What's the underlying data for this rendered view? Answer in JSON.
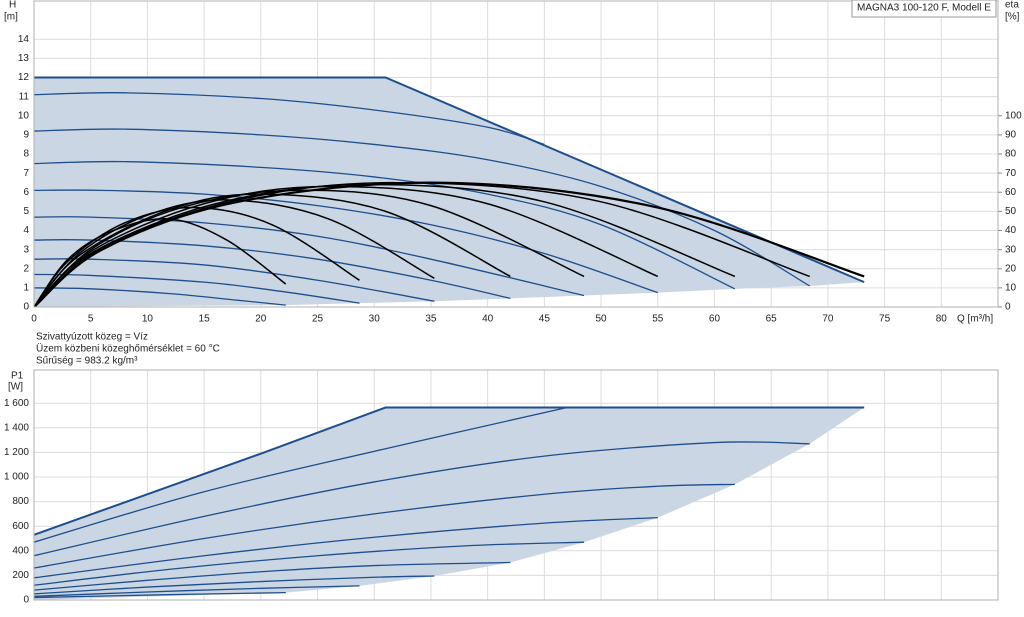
{
  "notes": [
    "Szivattyúzott közeg = Víz",
    "Üzem közbeni közeghőmérséklet = 60 °C",
    "Sűrűség = 983.2 kg/m³"
  ],
  "chart_data": [
    {
      "type": "line",
      "annotation": "MAGNA3 100-120 F, Modell E",
      "y_label": "H",
      "y_unit": "[m]",
      "y2_label": "eta",
      "y2_unit": "[%]",
      "x_label": "Q [m³/h]",
      "xlim": [
        0,
        85
      ],
      "xticks": [
        0,
        5,
        10,
        15,
        20,
        25,
        30,
        35,
        40,
        45,
        50,
        55,
        60,
        65,
        70,
        75,
        80
      ],
      "xtick_labels": true,
      "ylim": [
        0,
        16
      ],
      "yticks": [
        0,
        1,
        2,
        3,
        4,
        5,
        6,
        7,
        8,
        9,
        10,
        11,
        12,
        13,
        14
      ],
      "y2lim": [
        0,
        160
      ],
      "y2ticks": [
        0,
        10,
        20,
        30,
        40,
        50,
        60,
        70,
        80,
        90,
        100
      ],
      "grid": true,
      "envelope": {
        "color": "#cad6e3",
        "line_color": "#1f4e8c",
        "upper": {
          "x": [
            0,
            31,
            73.2
          ],
          "values": [
            12,
            12,
            1.3
          ]
        },
        "lower": {
          "x": [
            0,
            22.2,
            28.7,
            35.3,
            42,
            48.5,
            55,
            61.8,
            68.4,
            73.2
          ],
          "values": [
            0,
            0.1,
            0.2,
            0.3,
            0.45,
            0.6,
            0.75,
            0.95,
            1.1,
            1.3
          ]
        }
      },
      "series": [
        {
          "color": "#1f4e8c",
          "x": [
            0,
            8,
            20,
            30,
            40,
            45
          ],
          "values": [
            11.1,
            11.2,
            10.9,
            10.3,
            9.4,
            8.5
          ]
        },
        {
          "color": "#1f4e8c",
          "x": [
            0,
            8,
            20,
            30,
            40,
            50,
            60,
            68.4
          ],
          "values": [
            9.2,
            9.3,
            9.0,
            8.5,
            7.7,
            6.3,
            4.0,
            1.1
          ]
        },
        {
          "color": "#1f4e8c",
          "x": [
            0,
            8,
            20,
            30,
            40,
            50,
            61.8
          ],
          "values": [
            7.5,
            7.6,
            7.3,
            6.8,
            5.9,
            4.3,
            0.95
          ]
        },
        {
          "color": "#1f4e8c",
          "x": [
            0,
            6,
            15,
            25,
            35,
            45,
            55
          ],
          "values": [
            6.1,
            6.1,
            5.9,
            5.3,
            4.3,
            2.8,
            0.75
          ]
        },
        {
          "color": "#1f4e8c",
          "x": [
            0,
            5,
            15,
            25,
            35,
            48.5
          ],
          "values": [
            4.7,
            4.7,
            4.4,
            3.7,
            2.5,
            0.6
          ]
        },
        {
          "color": "#1f4e8c",
          "x": [
            0,
            5,
            15,
            25,
            35,
            42
          ],
          "values": [
            3.5,
            3.5,
            3.2,
            2.5,
            1.4,
            0.45
          ]
        },
        {
          "color": "#1f4e8c",
          "x": [
            0,
            5,
            15,
            25,
            35.3
          ],
          "values": [
            2.5,
            2.5,
            2.2,
            1.4,
            0.3
          ]
        },
        {
          "color": "#1f4e8c",
          "x": [
            0,
            5,
            15,
            22,
            28.7
          ],
          "values": [
            1.7,
            1.65,
            1.3,
            0.8,
            0.2
          ]
        },
        {
          "color": "#1f4e8c",
          "x": [
            0,
            5,
            12,
            18,
            22.2
          ],
          "values": [
            1.0,
            0.95,
            0.7,
            0.35,
            0.1
          ]
        },
        {
          "color": "#000000",
          "axis": "y2",
          "x": [
            0,
            3,
            7,
            12,
            17,
            22.2
          ],
          "values": [
            0,
            25,
            40,
            46,
            35,
            12
          ]
        },
        {
          "color": "#000000",
          "axis": "y2",
          "x": [
            0,
            3,
            8,
            14,
            21,
            28.7
          ],
          "values": [
            0,
            24,
            44,
            52,
            43,
            14
          ]
        },
        {
          "color": "#000000",
          "axis": "y2",
          "x": [
            0,
            4,
            10,
            17,
            26,
            35.3
          ],
          "values": [
            0,
            28,
            48,
            56,
            46,
            15
          ]
        },
        {
          "color": "#000000",
          "axis": "y2",
          "x": [
            0,
            4,
            12,
            20,
            31,
            42
          ],
          "values": [
            0,
            27,
            51,
            59,
            50,
            16
          ]
        },
        {
          "color": "#000000",
          "axis": "y2",
          "x": [
            0,
            5,
            13,
            23,
            35,
            48.5
          ],
          "values": [
            0,
            30,
            52,
            61,
            53,
            16
          ]
        },
        {
          "color": "#000000",
          "axis": "y2",
          "x": [
            0,
            5,
            15,
            26,
            40,
            55
          ],
          "values": [
            0,
            29,
            54,
            63,
            54,
            16
          ]
        },
        {
          "color": "#000000",
          "axis": "y2",
          "x": [
            0,
            5,
            16,
            29,
            45,
            61.8
          ],
          "values": [
            0,
            28,
            54,
            64,
            55,
            16
          ]
        },
        {
          "color": "#000000",
          "axis": "y2",
          "x": [
            0,
            6,
            18,
            32,
            50,
            68.4
          ],
          "values": [
            0,
            31,
            56,
            65,
            55,
            16
          ]
        },
        {
          "color": "#000000",
          "axis": "y2",
          "x": [
            0,
            6,
            18,
            36,
            55,
            73.2
          ],
          "values": [
            0,
            30,
            55,
            65,
            52,
            16
          ]
        }
      ]
    },
    {
      "type": "line",
      "y_label": "P1",
      "y_unit": "[W]",
      "xlim": [
        0,
        85
      ],
      "xticks": [
        0,
        5,
        10,
        15,
        20,
        25,
        30,
        35,
        40,
        45,
        50,
        55,
        60,
        65,
        70,
        75,
        80
      ],
      "xtick_labels": false,
      "ylim": [
        0,
        1870
      ],
      "yticks": [
        0,
        200,
        400,
        600,
        800,
        {
          "value": 1000,
          "label": "1 000"
        },
        {
          "value": 1200,
          "label": "1 200"
        },
        {
          "value": 1400,
          "label": "1 400"
        },
        {
          "value": 1600,
          "label": "1 600"
        }
      ],
      "grid": true,
      "envelope": {
        "color": "#cad6e3",
        "line_color": "#1f4e8c",
        "upper": {
          "x": [
            0,
            20,
            31,
            73.2
          ],
          "values": [
            530,
            1190,
            1565,
            1565
          ]
        },
        "lower": {
          "x": [
            0,
            22.2,
            28.7,
            35.3,
            42,
            48.5,
            55,
            61.8,
            68.4,
            73.2
          ],
          "values": [
            0,
            60,
            115,
            195,
            305,
            470,
            670,
            940,
            1270,
            1565
          ]
        }
      },
      "series": [
        {
          "color": "#1f4e8c",
          "x": [
            0,
            15,
            31,
            47
          ],
          "values": [
            470,
            880,
            1230,
            1565
          ]
        },
        {
          "color": "#1f4e8c",
          "x": [
            0,
            15,
            30,
            45,
            60,
            68.4
          ],
          "values": [
            360,
            680,
            960,
            1170,
            1280,
            1270
          ]
        },
        {
          "color": "#1f4e8c",
          "x": [
            0,
            15,
            30,
            45,
            55,
            61.8
          ],
          "values": [
            260,
            500,
            700,
            860,
            925,
            940
          ]
        },
        {
          "color": "#1f4e8c",
          "x": [
            0,
            15,
            30,
            45,
            55
          ],
          "values": [
            180,
            360,
            510,
            625,
            670
          ]
        },
        {
          "color": "#1f4e8c",
          "x": [
            0,
            12,
            25,
            38,
            48.5
          ],
          "values": [
            120,
            250,
            360,
            440,
            470
          ]
        },
        {
          "color": "#1f4e8c",
          "x": [
            0,
            10,
            20,
            30,
            42
          ],
          "values": [
            80,
            160,
            230,
            280,
            305
          ]
        },
        {
          "color": "#1f4e8c",
          "x": [
            0,
            10,
            20,
            30,
            35.3
          ],
          "values": [
            50,
            105,
            150,
            185,
            195
          ]
        },
        {
          "color": "#1f4e8c",
          "x": [
            0,
            10,
            20,
            28.7
          ],
          "values": [
            30,
            65,
            95,
            115
          ]
        },
        {
          "color": "#1f4e8c",
          "x": [
            0,
            10,
            22.2
          ],
          "values": [
            20,
            40,
            60
          ]
        }
      ]
    }
  ]
}
